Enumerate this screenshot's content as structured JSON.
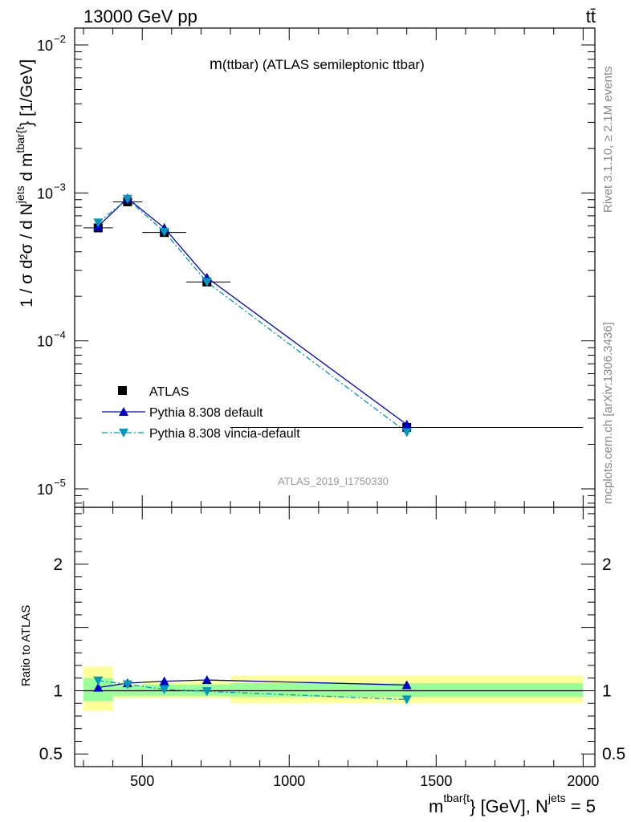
{
  "header": {
    "energy_label": "13000 GeV pp",
    "process_label": "tt̄"
  },
  "side": {
    "rivet_label": "Rivet 3.1.10, ≥ 2.1M events",
    "mcplots_label": "mcplots.cern.ch [arXiv:1306.3436]"
  },
  "chart_data": {
    "type": "line",
    "title_main": "m",
    "title_rest": "(ttbar) (ATLAS semileptonic ttbar)",
    "analysis_id": "ATLAS_2019_I1750330",
    "ylabel_main": "1 / σ d²σ / d N",
    "ylabel_sup1": "jets",
    "ylabel_mid": " d m",
    "ylabel_sup2": "tbar{t",
    "ylabel_end": "} [1/GeV]",
    "xlabel_main": "m",
    "xlabel_sup1": "tbar{t",
    "xlabel_mid": "} [GeV], N",
    "xlabel_sup2": "jets",
    "xlabel_end": " = 5",
    "ratio_ylabel": "Ratio to ATLAS",
    "xlim": [
      270,
      2040
    ],
    "ylim_main": [
      7.5e-06,
      0.013
    ],
    "ylog": true,
    "ylim_ratio": [
      0.4,
      2.45
    ],
    "x_ticks": [
      500,
      1000,
      1500,
      2000
    ],
    "x_tick_labels": [
      "500",
      "1000",
      "1500",
      "2000"
    ],
    "y_main_ticks": [
      1e-05,
      0.0001,
      0.001,
      0.01
    ],
    "y_main_tick_labels": [
      {
        "base": "10",
        "exp": "−5"
      },
      {
        "base": "10",
        "exp": "−4"
      },
      {
        "base": "10",
        "exp": "−3"
      },
      {
        "base": "10",
        "exp": "−2"
      }
    ],
    "y_ratio_ticks": [
      0.5,
      1,
      2
    ],
    "y_ratio_tick_labels": [
      "0.5",
      "1",
      "2"
    ],
    "legend_position": "lower-left",
    "series": [
      {
        "name": "ATLAS",
        "style": "data-square",
        "color": "#000000",
        "x": [
          350,
          450,
          575,
          720,
          1400
        ],
        "x_bins": [
          [
            300,
            400
          ],
          [
            400,
            500
          ],
          [
            500,
            650
          ],
          [
            650,
            800
          ],
          [
            800,
            2000
          ]
        ],
        "y": [
          0.00058,
          0.00087,
          0.00054,
          0.00025,
          2.6e-05
        ]
      },
      {
        "name": "Pythia 8.308 default",
        "style": "line-solid-triangle-up",
        "color": "#0000cc",
        "x": [
          350,
          450,
          575,
          720,
          1400
        ],
        "y": [
          0.000595,
          0.00092,
          0.00058,
          0.000268,
          2.72e-05
        ]
      },
      {
        "name": "Pythia 8.308 vincia-default",
        "style": "line-dashdot-triangle-down",
        "color": "#0099bb",
        "x": [
          350,
          450,
          575,
          720,
          1400
        ],
        "y": [
          0.00063,
          0.00091,
          0.000545,
          0.00025,
          2.41e-05
        ]
      }
    ],
    "ratio": {
      "bins": [
        [
          300,
          400
        ],
        [
          400,
          500
        ],
        [
          500,
          650
        ],
        [
          650,
          800
        ],
        [
          800,
          2000
        ]
      ],
      "green_band": [
        [
          0.92,
          1.1
        ],
        [
          0.96,
          1.04
        ],
        [
          0.96,
          1.05
        ],
        [
          0.96,
          1.05
        ],
        [
          0.95,
          1.06
        ]
      ],
      "yellow_band": [
        [
          0.84,
          1.19
        ],
        [
          0.94,
          1.07
        ],
        [
          0.94,
          1.08
        ],
        [
          0.94,
          1.08
        ],
        [
          0.9,
          1.12
        ]
      ],
      "series": [
        {
          "name": "Pythia 8.308 default",
          "x": [
            350,
            450,
            575,
            720,
            1400
          ],
          "values": [
            1.025,
            1.06,
            1.075,
            1.085,
            1.045
          ]
        },
        {
          "name": "Pythia 8.308 vincia-default",
          "x": [
            350,
            450,
            575,
            720,
            1400
          ],
          "values": [
            1.08,
            1.05,
            1.01,
            0.995,
            0.93
          ]
        }
      ]
    },
    "colors": {
      "green": "#99ff99",
      "yellow": "#ffff99"
    }
  }
}
